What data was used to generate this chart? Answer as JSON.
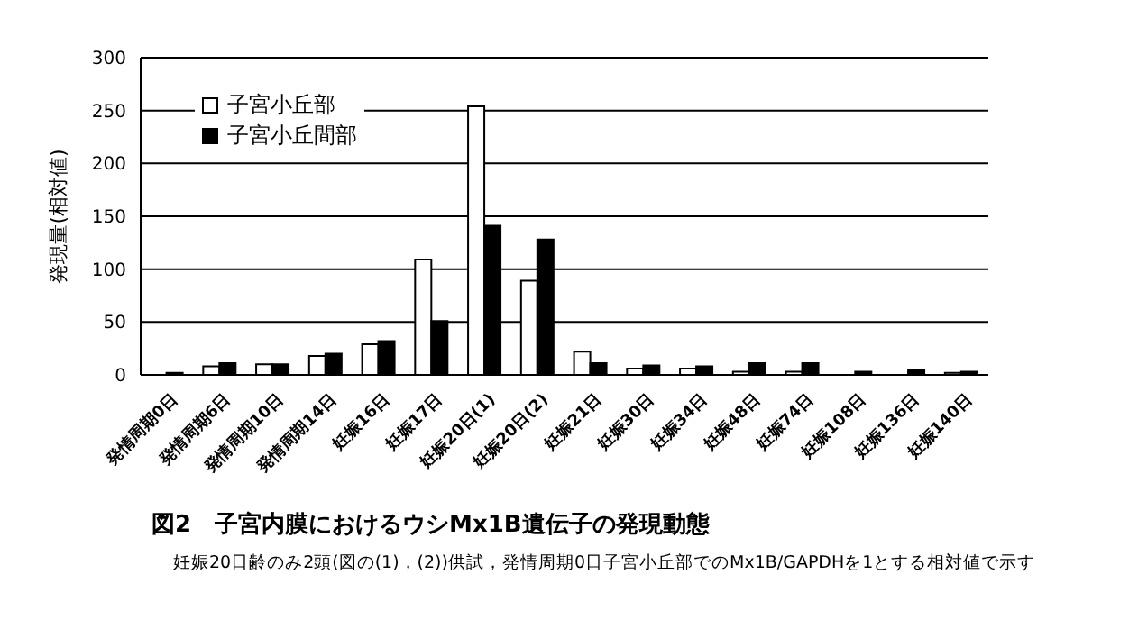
{
  "chart_data": {
    "type": "bar",
    "title": "図2　子宮内膜におけるウシMx1B遺伝子の発現動態",
    "ylabel": "発現量(相対値)",
    "annotations": [
      "妊娠20日齢のみ2頭(図の(1)，(2))供試，発情周期0日子宮小丘部でのMx1B/GAPDHを1とする相対値で示す"
    ],
    "categories": [
      "発情周期0日",
      "発情周期6日",
      "発情周期10日",
      "発情周期14日",
      "妊娠16日",
      "妊娠17日",
      "妊娠20日(1)",
      "妊娠20日(2)",
      "妊娠21日",
      "妊娠30日",
      "妊娠34日",
      "妊娠48日",
      "妊娠74日",
      "妊娠108日",
      "妊娠136日",
      "妊娠140日"
    ],
    "series": [
      {
        "name": "子宮小丘部",
        "color": "#ffffff",
        "values": [
          0,
          8,
          10,
          18,
          29,
          109,
          254,
          89,
          22,
          6,
          6,
          3,
          3,
          0,
          0,
          2
        ]
      },
      {
        "name": "子宮小丘間部",
        "color": "#000000",
        "values": [
          2,
          11,
          10,
          20,
          32,
          51,
          141,
          128,
          11,
          9,
          8,
          11,
          11,
          3,
          5,
          3
        ]
      }
    ],
    "ylim": [
      0,
      300
    ],
    "yticks": [
      0,
      50,
      100,
      150,
      200,
      250,
      300
    ],
    "grid": "y",
    "legend": "top left"
  }
}
